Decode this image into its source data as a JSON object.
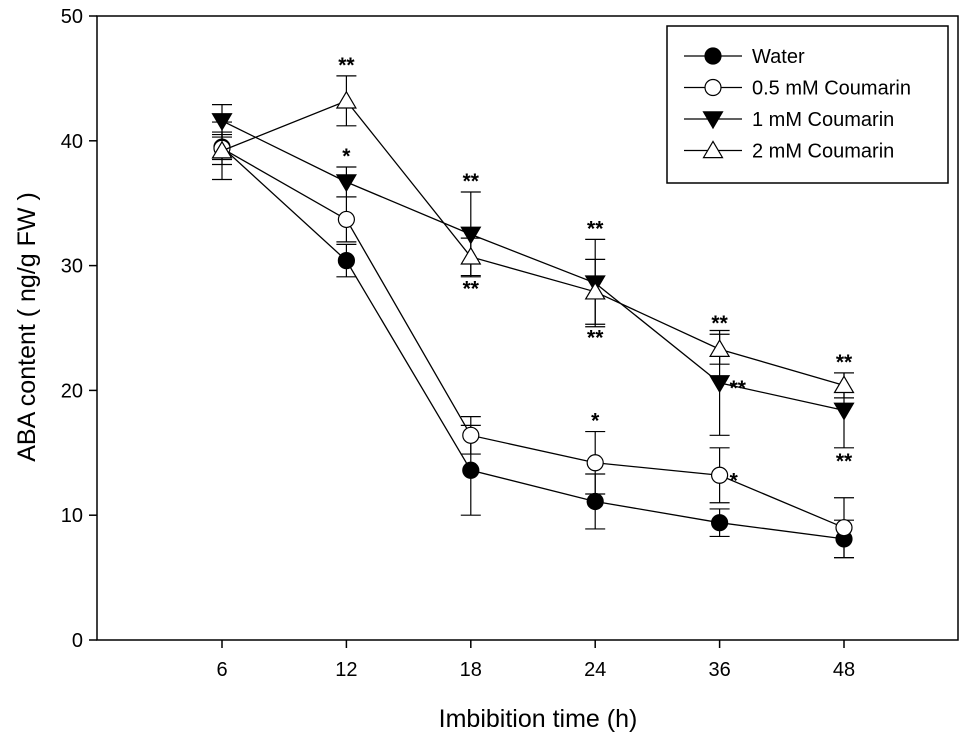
{
  "chart_data": {
    "type": "line",
    "title": "",
    "xlabel": "Imbibition time (h)",
    "ylabel": "ABA content ( ng/g FW )",
    "categories": [
      "6",
      "12",
      "18",
      "24",
      "36",
      "48"
    ],
    "ylim": [
      0,
      50
    ],
    "yticks": [
      "0",
      "10",
      "20",
      "30",
      "40",
      "50"
    ],
    "grid": false,
    "legend_position": "top-right",
    "series": [
      {
        "name": "Water",
        "marker": "circle-filled",
        "values": [
          39.5,
          30.4,
          13.6,
          11.1,
          9.4,
          8.1
        ],
        "errors": [
          1.0,
          1.3,
          3.6,
          2.2,
          1.1,
          1.5
        ],
        "annotations": [
          "",
          "",
          "",
          "",
          "",
          ""
        ]
      },
      {
        "name": "0.5 mM Coumarin",
        "marker": "circle-open",
        "values": [
          39.4,
          33.7,
          16.4,
          14.2,
          13.2,
          9.0
        ],
        "errors": [
          1.3,
          1.8,
          1.5,
          2.5,
          2.2,
          2.4
        ],
        "annotations": [
          "",
          "",
          "",
          "*",
          "*",
          ""
        ]
      },
      {
        "name": "1 mM Coumarin",
        "marker": "triangle-down-filled",
        "values": [
          41.6,
          36.7,
          32.5,
          28.6,
          20.6,
          18.4
        ],
        "errors": [
          1.3,
          1.2,
          3.4,
          3.5,
          4.2,
          3.0
        ],
        "annotations": [
          "",
          "*",
          "**",
          "**",
          "**",
          "**"
        ]
      },
      {
        "name": "2 mM Coumarin",
        "marker": "triangle-up-open",
        "values": [
          39.2,
          43.2,
          30.7,
          27.9,
          23.3,
          20.4
        ],
        "errors": [
          2.3,
          2.0,
          1.5,
          2.6,
          1.2,
          1.0
        ],
        "annotations": [
          "",
          "**",
          "**",
          "**",
          "**",
          "**"
        ]
      }
    ]
  }
}
